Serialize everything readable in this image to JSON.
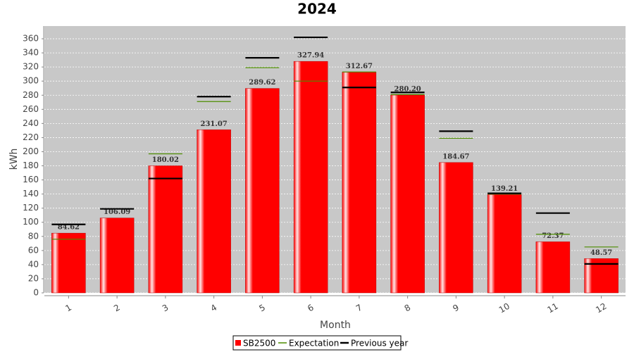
{
  "chart_data": {
    "type": "bar",
    "title": "2024",
    "x_label": "Month",
    "y_label": "kWh",
    "categories": [
      "1",
      "2",
      "3",
      "4",
      "5",
      "6",
      "7",
      "8",
      "9",
      "10",
      "11",
      "12"
    ],
    "series": [
      {
        "name": "SB2500",
        "color": "#ff0000",
        "values": [
          84.62,
          106.09,
          180.02,
          231.07,
          289.62,
          327.94,
          312.67,
          280.2,
          184.67,
          139.21,
          72.37,
          48.57
        ],
        "value_labels": [
          "84.62",
          "106.09",
          "180.02",
          "231.07",
          "289.62",
          "327.94",
          "312.67",
          "280.20",
          "184.67",
          "139.21",
          "72.37",
          "48.57"
        ]
      },
      {
        "name": "Expectation",
        "color": "#4c8c00",
        "values": [
          76,
          119,
          197,
          271,
          319,
          300,
          313,
          281,
          219,
          140,
          83,
          65
        ]
      },
      {
        "name": "Previous year",
        "color": "#000000",
        "values": [
          97,
          119,
          162,
          278,
          333,
          362,
          291,
          284,
          229,
          141,
          113,
          41
        ]
      }
    ],
    "ylim": [
      0,
      378
    ],
    "yticks": [
      0,
      20,
      40,
      60,
      80,
      100,
      120,
      140,
      160,
      180,
      200,
      220,
      240,
      260,
      280,
      300,
      320,
      340,
      360
    ],
    "grid": true,
    "legend": "bottom"
  }
}
